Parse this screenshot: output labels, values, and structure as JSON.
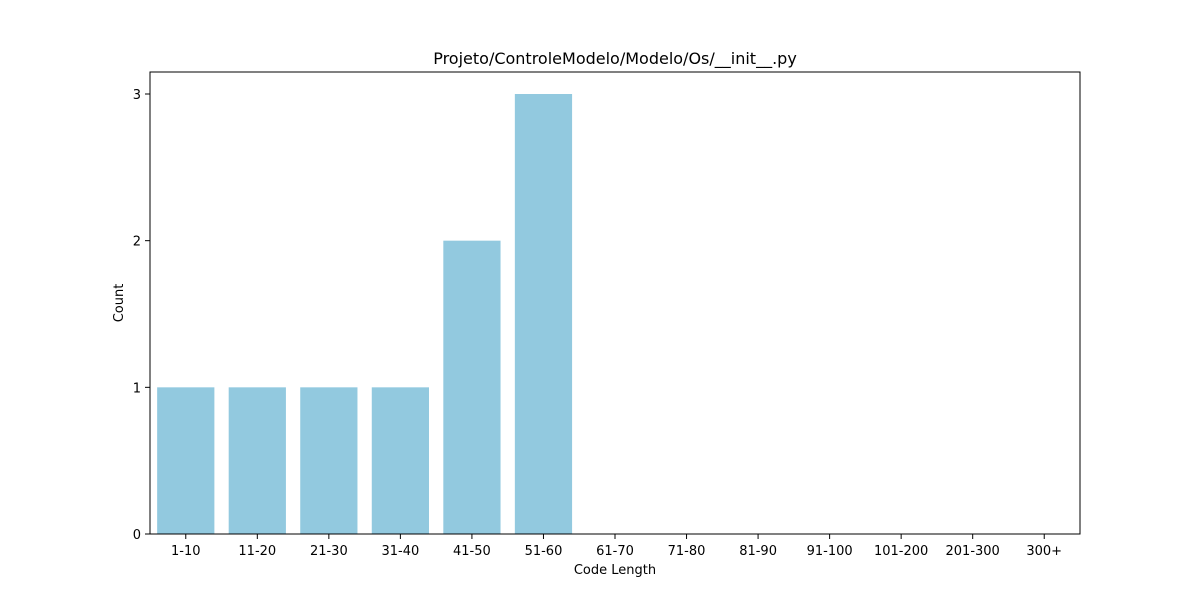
{
  "chart_data": {
    "type": "bar",
    "title": "Projeto/ControleModelo/Modelo/Os/__init__.py",
    "xlabel": "Code Length",
    "ylabel": "Count",
    "categories": [
      "1-10",
      "11-20",
      "21-30",
      "31-40",
      "41-50",
      "51-60",
      "61-70",
      "71-80",
      "81-90",
      "91-100",
      "101-200",
      "201-300",
      "300+"
    ],
    "values": [
      1,
      1,
      1,
      1,
      2,
      3,
      0,
      0,
      0,
      0,
      0,
      0,
      0
    ],
    "yticks": [
      "0",
      "1",
      "2",
      "3"
    ],
    "ylim": [
      0,
      3.15
    ],
    "bar_color": "#92c9df",
    "grid": false,
    "legend": false
  }
}
